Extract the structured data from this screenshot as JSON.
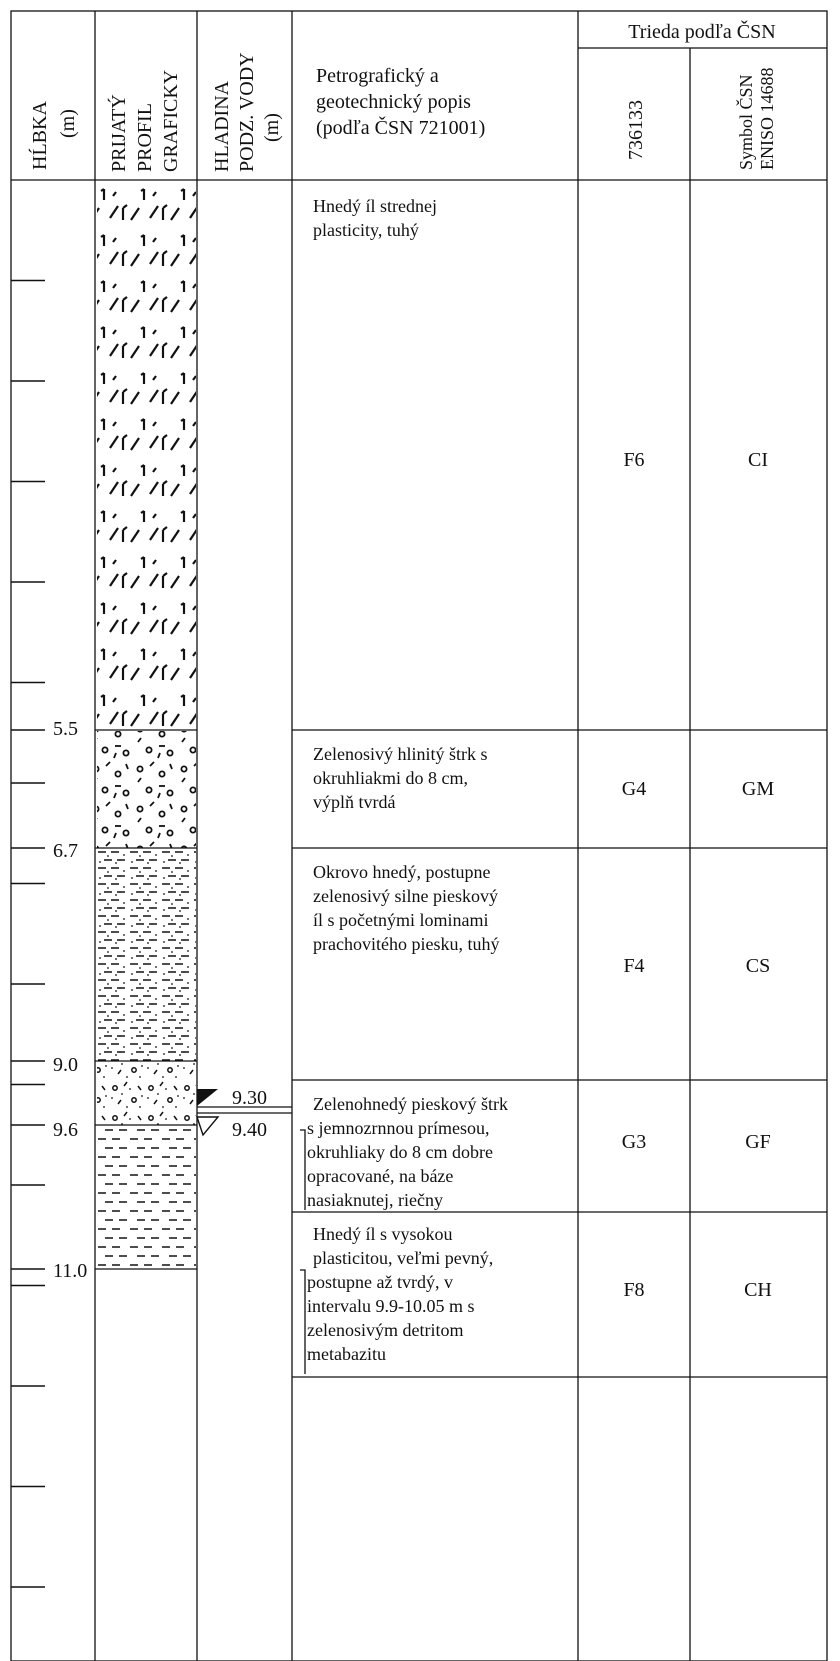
{
  "header": {
    "depth_col": [
      "HĹBKA",
      "(m)"
    ],
    "profile_col": [
      "PRIJATÝ",
      "PROFIL",
      "GRAFICKY"
    ],
    "water_col": [
      "HLADINA",
      "PODZ. VODY",
      "(m)"
    ],
    "description_col": [
      "Petrografický a",
      "geotechnický popis",
      "(podľa ČSN 721001)"
    ],
    "class_group": "Trieda podľa ČSN",
    "class_col1": "736133",
    "class_col2": [
      "Symbol ČSN",
      "ENISO 14688"
    ]
  },
  "depth_labels": [
    "5.5",
    "6.7",
    "9.0",
    "9.6",
    "11.0"
  ],
  "groundwater": {
    "levels": [
      "9.30",
      "9.40"
    ]
  },
  "layers": [
    {
      "id": "clay-medium",
      "description": [
        "Hnedý íl strednej",
        "plasticity, tuhý"
      ],
      "class_736133": "F6",
      "symbol_14688": "CI"
    },
    {
      "id": "gravel-loamy",
      "description": [
        "Zelenosivý hlinitý štrk s",
        "okruhliakmi do 8 cm,",
        "výplň tvrdá"
      ],
      "class_736133": "G4",
      "symbol_14688": "GM"
    },
    {
      "id": "clay-sandy",
      "description": [
        "Okrovo hnedý, postupne",
        "zelenosivý silne pieskový",
        "íl s početnými lominami",
        "prachovitého piesku, tuhý"
      ],
      "class_736133": "F4",
      "symbol_14688": "CS"
    },
    {
      "id": "gravel-sandy",
      "description": [
        "Zelenohnedý pieskový štrk",
        "s jemnozrnnou prímesou,",
        "okruhliaky do 8 cm dobre",
        "opracované, na báze",
        "nasiaknutej, riečny"
      ],
      "class_736133": "G3",
      "symbol_14688": "GF"
    },
    {
      "id": "clay-high",
      "description": [
        "Hnedý íl s vysokou",
        "plasticitou, veľmi pevný,",
        "postupne až tvrdý, v",
        "intervalu 9.9-10.05 m s",
        "zelenosivým detritom",
        "metabazitu"
      ],
      "class_736133": "F8",
      "symbol_14688": "CH"
    }
  ]
}
